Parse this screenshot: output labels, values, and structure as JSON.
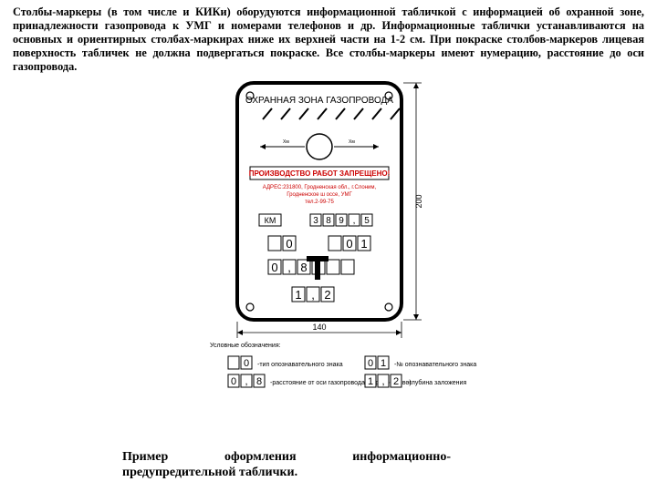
{
  "paragraph": "Столбы-маркеры (в том числе и КИКи) оборудуются информационной табличкой с информацией об охранной зоне, принадлежности газопровода к УМГ и номерами телефонов и др. Информационные таблички устанавливаются на основных и ориентирных столбах-маркирах ниже их верхней части на 1-2 см. При покраске столбов-маркеров лицевая поверхность табличек не должна подвергаться покраске. Все столбы-маркеры имеют нумерацию, расстояние до оси газопровода.",
  "caption": "Пример оформления информационно-предупредительной таблички.",
  "plate": {
    "title": "ОХРАННАЯ ЗОНА ГАЗОПРОВОДА",
    "arrow_left": "Хм",
    "arrow_right": "Хм",
    "banner": "ПРОИЗВОДСТВО РАБОТ ЗАПРЕЩЕНО!",
    "address_line1": "АДРЕС:231800, Гродненская обл., г.Слоним,",
    "address_line2": "Гродненское ш оссе, УМГ",
    "address_line3": "тел.2-99-75",
    "km_label": "КМ",
    "km_cells": [
      "3",
      "8",
      "9",
      ",",
      "5"
    ],
    "row1_left": [
      "",
      " 0"
    ],
    "row1_right": [
      "",
      " 0",
      "1"
    ],
    "row2": [
      "0",
      ",",
      "8",
      "",
      "",
      ""
    ],
    "row3": [
      "1",
      ",",
      "2"
    ],
    "dim_bottom": "140",
    "dim_right": "200"
  },
  "legend": {
    "title": "Условные обозначения:",
    "item1_cells": [
      "",
      "0"
    ],
    "item1_text": "-тип опознавательного знака",
    "item2_cells": [
      "0",
      "1"
    ],
    "item2_text": "-№ опознавательного знака",
    "item3_cells": [
      "0",
      ",",
      "8"
    ],
    "item3_text": "-расстояние от оси газопровода (вправо-влево)",
    "item4_cells": [
      "1",
      ",",
      "2"
    ],
    "item4_text": "-глубина заложения"
  },
  "style": {
    "plate_stroke": "#000000",
    "plate_fill": "#ffffff",
    "cell_stroke": "#000000",
    "banner_text": "#cc0000",
    "red_text": "#cc0000",
    "hatch": "#000000",
    "dim_line": "#000000",
    "small_font": 6,
    "med_font": 8,
    "large_font": 10
  }
}
